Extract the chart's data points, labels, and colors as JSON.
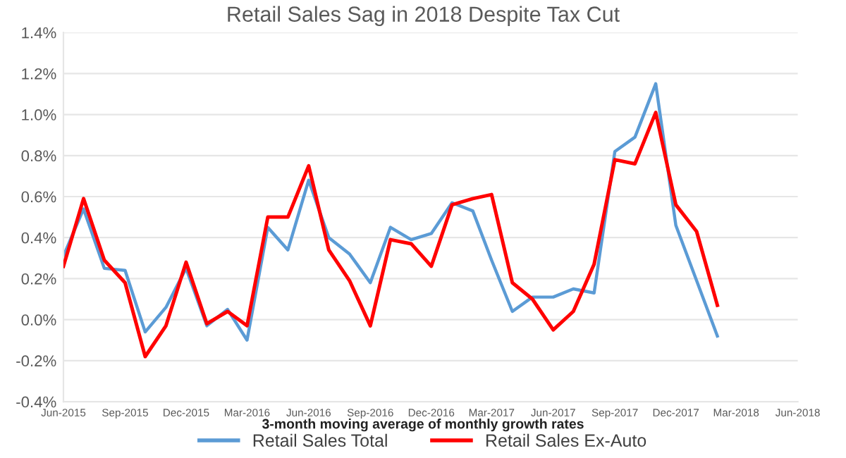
{
  "chart_data": {
    "type": "line",
    "title": "Retail Sales Sag in 2018 Despite Tax Cut",
    "xlabel": "3-month moving average of monthly growth rates",
    "x": [
      "2015-06",
      "2015-07",
      "2015-08",
      "2015-09",
      "2015-10",
      "2015-11",
      "2015-12",
      "2016-01",
      "2016-02",
      "2016-03",
      "2016-04",
      "2016-05",
      "2016-06",
      "2016-07",
      "2016-08",
      "2016-09",
      "2016-10",
      "2016-11",
      "2016-12",
      "2017-01",
      "2017-02",
      "2017-03",
      "2017-04",
      "2017-05",
      "2017-06",
      "2017-07",
      "2017-08",
      "2017-09",
      "2017-10",
      "2017-11",
      "2017-12",
      "2018-01",
      "2018-02"
    ],
    "series": [
      {
        "name": "Retail Sales Total",
        "color": "#5b9bd5",
        "values": [
          0.31,
          0.54,
          0.25,
          0.24,
          -0.06,
          0.06,
          0.25,
          -0.03,
          0.05,
          -0.1,
          0.45,
          0.34,
          0.68,
          0.4,
          0.32,
          0.18,
          0.45,
          0.39,
          0.42,
          0.57,
          0.53,
          0.29,
          0.04,
          0.11,
          0.11,
          0.15,
          0.13,
          0.82,
          0.89,
          1.15,
          0.46,
          0.19,
          -0.08
        ]
      },
      {
        "name": "Retail Sales Ex-Auto",
        "color": "#ff0000",
        "values": [
          0.26,
          0.59,
          0.29,
          0.18,
          -0.18,
          -0.03,
          0.28,
          -0.02,
          0.04,
          -0.03,
          0.5,
          0.5,
          0.75,
          0.34,
          0.19,
          -0.03,
          0.39,
          0.37,
          0.26,
          0.56,
          0.59,
          0.61,
          0.18,
          0.1,
          -0.05,
          0.04,
          0.27,
          0.78,
          0.76,
          1.01,
          0.56,
          0.43,
          0.07
        ]
      }
    ],
    "xlim": [
      "2015-06",
      "2018-06"
    ],
    "xticks": [
      {
        "value": "2015-06",
        "label": "Jun-2015"
      },
      {
        "value": "2015-09",
        "label": "Sep-2015"
      },
      {
        "value": "2015-12",
        "label": "Dec-2015"
      },
      {
        "value": "2016-03",
        "label": "Mar-2016"
      },
      {
        "value": "2016-06",
        "label": "Jun-2016"
      },
      {
        "value": "2016-09",
        "label": "Sep-2016"
      },
      {
        "value": "2016-12",
        "label": "Dec-2016"
      },
      {
        "value": "2017-03",
        "label": "Mar-2017"
      },
      {
        "value": "2017-06",
        "label": "Jun-2017"
      },
      {
        "value": "2017-09",
        "label": "Sep-2017"
      },
      {
        "value": "2017-12",
        "label": "Dec-2017"
      },
      {
        "value": "2018-03",
        "label": "Mar-2018"
      },
      {
        "value": "2018-06",
        "label": "Jun-2018"
      }
    ],
    "ylim": [
      -0.4,
      1.4
    ],
    "yticks": [
      {
        "value": -0.4,
        "label": "-0.4%"
      },
      {
        "value": -0.2,
        "label": "-0.2%"
      },
      {
        "value": 0.0,
        "label": "0.0%"
      },
      {
        "value": 0.2,
        "label": "0.2%"
      },
      {
        "value": 0.4,
        "label": "0.4%"
      },
      {
        "value": 0.6,
        "label": "0.6%"
      },
      {
        "value": 0.8,
        "label": "0.8%"
      },
      {
        "value": 1.0,
        "label": "1.0%"
      },
      {
        "value": 1.2,
        "label": "1.2%"
      },
      {
        "value": 1.4,
        "label": "1.4%"
      }
    ],
    "grid": "y",
    "legend": "bottom",
    "line_style": "solid",
    "marker": "none"
  }
}
